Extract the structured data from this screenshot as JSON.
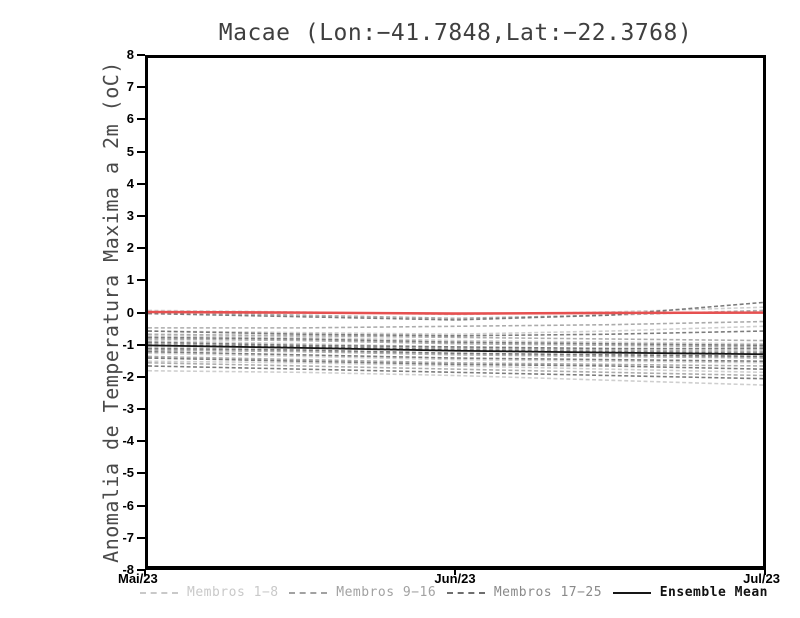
{
  "chart_data": {
    "type": "line",
    "title": "Macae (Lon:−41.7848,Lat:−22.3768)",
    "ylabel": "Anomalia de Temperatura Maxima a 2m (oC)",
    "xlabel": "",
    "ylim": [
      -8,
      8
    ],
    "yticks": [
      8,
      7,
      6,
      5,
      4,
      3,
      2,
      1,
      0,
      -1,
      -2,
      -3,
      -4,
      -5,
      -6,
      -7,
      -8
    ],
    "xticks": [
      "Mai/23",
      "Jun/23",
      "Jul/23"
    ],
    "grid": false,
    "legend_position": "bottom",
    "x_normalized": [
      0,
      0.25,
      0.5,
      0.75,
      1
    ],
    "member_groups": [
      {
        "name": "Membros 1−8",
        "color": "#c9c9c9",
        "style": "dashed",
        "lines": [
          [
            0.05,
            0.0,
            -0.08,
            0.0,
            0.15
          ],
          [
            -0.6,
            -0.65,
            -0.7,
            -0.6,
            -0.45
          ],
          [
            -0.75,
            -0.8,
            -0.9,
            -0.95,
            -1.0
          ],
          [
            -0.9,
            -1.0,
            -1.1,
            -1.15,
            -1.2
          ],
          [
            -1.1,
            -1.15,
            -1.2,
            -1.3,
            -1.4
          ],
          [
            -1.3,
            -1.4,
            -1.5,
            -1.55,
            -1.6
          ],
          [
            -1.55,
            -1.6,
            -1.7,
            -1.8,
            -1.9
          ],
          [
            -1.85,
            -1.9,
            -2.0,
            -2.15,
            -2.3
          ]
        ]
      },
      {
        "name": "Membros 9−16",
        "color": "#a2a2a2",
        "style": "dashed",
        "lines": [
          [
            0.0,
            -0.1,
            -0.2,
            -0.1,
            0.05
          ],
          [
            -0.5,
            -0.5,
            -0.45,
            -0.4,
            -0.3
          ],
          [
            -0.7,
            -0.75,
            -0.8,
            -0.85,
            -0.9
          ],
          [
            -0.85,
            -0.9,
            -1.0,
            -1.05,
            -1.1
          ],
          [
            -1.0,
            -1.1,
            -1.15,
            -1.2,
            -1.25
          ],
          [
            -1.2,
            -1.25,
            -1.35,
            -1.4,
            -1.45
          ],
          [
            -1.4,
            -1.5,
            -1.6,
            -1.65,
            -1.7
          ],
          [
            -1.6,
            -1.7,
            -1.8,
            -1.9,
            -2.0
          ]
        ]
      },
      {
        "name": "Membros 17−25",
        "color": "#6e6e6e",
        "style": "dashed",
        "lines": [
          [
            -0.05,
            -0.15,
            -0.25,
            -0.1,
            0.3
          ],
          [
            -0.6,
            -0.7,
            -0.75,
            -0.7,
            -0.6
          ],
          [
            -0.8,
            -0.85,
            -0.95,
            -1.0,
            -1.05
          ],
          [
            -0.95,
            -1.05,
            -1.1,
            -1.15,
            -1.15
          ],
          [
            -1.05,
            -1.1,
            -1.2,
            -1.25,
            -1.3
          ],
          [
            -1.15,
            -1.2,
            -1.3,
            -1.35,
            -1.4
          ],
          [
            -1.25,
            -1.35,
            -1.45,
            -1.5,
            -1.55
          ],
          [
            -1.45,
            -1.55,
            -1.65,
            -1.7,
            -1.8
          ],
          [
            -1.7,
            -1.8,
            -1.9,
            -2.0,
            -2.1
          ]
        ]
      }
    ],
    "ensemble_mean": {
      "name": "Ensemble Mean",
      "color": "#161616",
      "style": "solid",
      "values": [
        -1.05,
        -1.13,
        -1.22,
        -1.28,
        -1.33
      ]
    },
    "reference_line": {
      "name": "zero-reference",
      "color": "#e65050",
      "style": "solid",
      "values": [
        0.0,
        -0.02,
        -0.05,
        -0.03,
        -0.02
      ]
    }
  }
}
